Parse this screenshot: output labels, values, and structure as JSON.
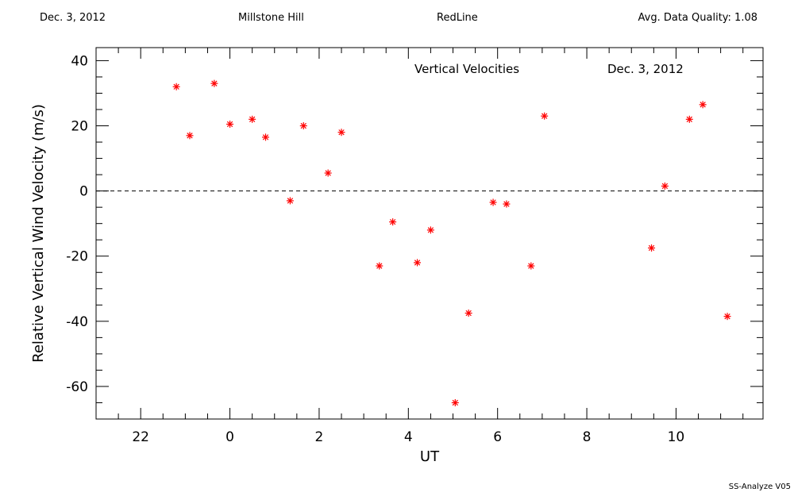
{
  "header": {
    "date": "Dec. 3, 2012",
    "site": "Millstone Hill",
    "emission": "RedLine",
    "quality": "Avg. Data Quality: 1.08"
  },
  "footer": {
    "software": "SS-Analyze V05"
  },
  "chart_data": {
    "type": "scatter",
    "annotations": [
      "Vertical Velocities",
      "Dec. 3, 2012"
    ],
    "xlabel": "UT",
    "ylabel": "Relative Vertical Wind Velocity (m/s)",
    "xlim": [
      21.0,
      11.95
    ],
    "x_axis_note": "hours UT, wrapping past midnight (22, 0, 2, ... 10)",
    "xticks": [
      {
        "v": 22,
        "label": "22"
      },
      {
        "v": 0,
        "label": "0"
      },
      {
        "v": 2,
        "label": "2"
      },
      {
        "v": 4,
        "label": "4"
      },
      {
        "v": 6,
        "label": "6"
      },
      {
        "v": 8,
        "label": "8"
      },
      {
        "v": 10,
        "label": "10"
      }
    ],
    "ylim": [
      -70,
      44
    ],
    "yticks": [
      40,
      20,
      0,
      -20,
      -40,
      -60
    ],
    "reference_line": {
      "y": 0,
      "style": "dashed",
      "color": "#000000"
    },
    "marker_color": "#ff0000",
    "marker": "asterisk",
    "points": [
      {
        "x": 22.8,
        "y": 32
      },
      {
        "x": 23.1,
        "y": 17
      },
      {
        "x": 23.65,
        "y": 33
      },
      {
        "x": 0.0,
        "y": 20.5
      },
      {
        "x": 0.5,
        "y": 22
      },
      {
        "x": 0.8,
        "y": 16.5
      },
      {
        "x": 1.35,
        "y": -3
      },
      {
        "x": 1.65,
        "y": 20
      },
      {
        "x": 2.2,
        "y": 5.5
      },
      {
        "x": 2.5,
        "y": 18
      },
      {
        "x": 3.35,
        "y": -23
      },
      {
        "x": 3.65,
        "y": -9.5
      },
      {
        "x": 4.2,
        "y": -22
      },
      {
        "x": 4.5,
        "y": -12
      },
      {
        "x": 5.05,
        "y": -65
      },
      {
        "x": 5.35,
        "y": -37.5
      },
      {
        "x": 5.9,
        "y": -3.5
      },
      {
        "x": 6.2,
        "y": -4
      },
      {
        "x": 6.75,
        "y": -23
      },
      {
        "x": 7.05,
        "y": 23
      },
      {
        "x": 9.45,
        "y": -17.5
      },
      {
        "x": 9.75,
        "y": 1.5
      },
      {
        "x": 10.3,
        "y": 22
      },
      {
        "x": 10.6,
        "y": 26.5
      },
      {
        "x": 11.15,
        "y": -38.5
      }
    ]
  }
}
